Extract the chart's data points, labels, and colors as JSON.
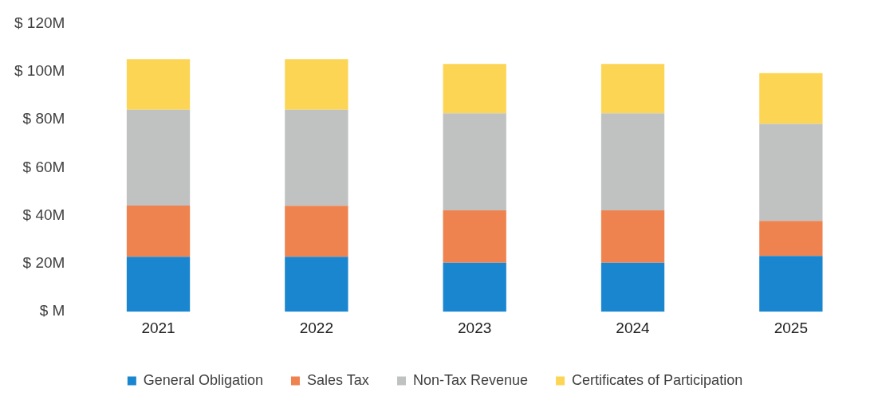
{
  "chart_data": {
    "type": "bar",
    "stacked": true,
    "categories": [
      "2021",
      "2022",
      "2023",
      "2024",
      "2025"
    ],
    "series": [
      {
        "name": "General Obligation",
        "color": "#1a86d0",
        "values": [
          22.9,
          22.9,
          20.4,
          20.4,
          23.2
        ]
      },
      {
        "name": "Sales Tax",
        "color": "#ee8350",
        "values": [
          21.3,
          21.2,
          21.8,
          21.8,
          14.6
        ]
      },
      {
        "name": "Non-Tax Revenue",
        "color": "#c0c2c2",
        "values": [
          39.9,
          40.0,
          40.4,
          40.4,
          40.4
        ]
      },
      {
        "name": "Certificates of Participation",
        "color": "#fdd555",
        "values": [
          21.0,
          21.0,
          20.5,
          20.5,
          21.1
        ]
      }
    ],
    "ylim": [
      0,
      120
    ],
    "yticks": [
      {
        "value": 0,
        "label": "$ M"
      },
      {
        "value": 20,
        "label": "$ 20M"
      },
      {
        "value": 40,
        "label": "$ 40M"
      },
      {
        "value": 60,
        "label": "$ 60M"
      },
      {
        "value": 80,
        "label": "$ 80M"
      },
      {
        "value": 100,
        "label": "$ 100M"
      },
      {
        "value": 120,
        "label": "$ 120M"
      }
    ],
    "legend": "bottom"
  }
}
